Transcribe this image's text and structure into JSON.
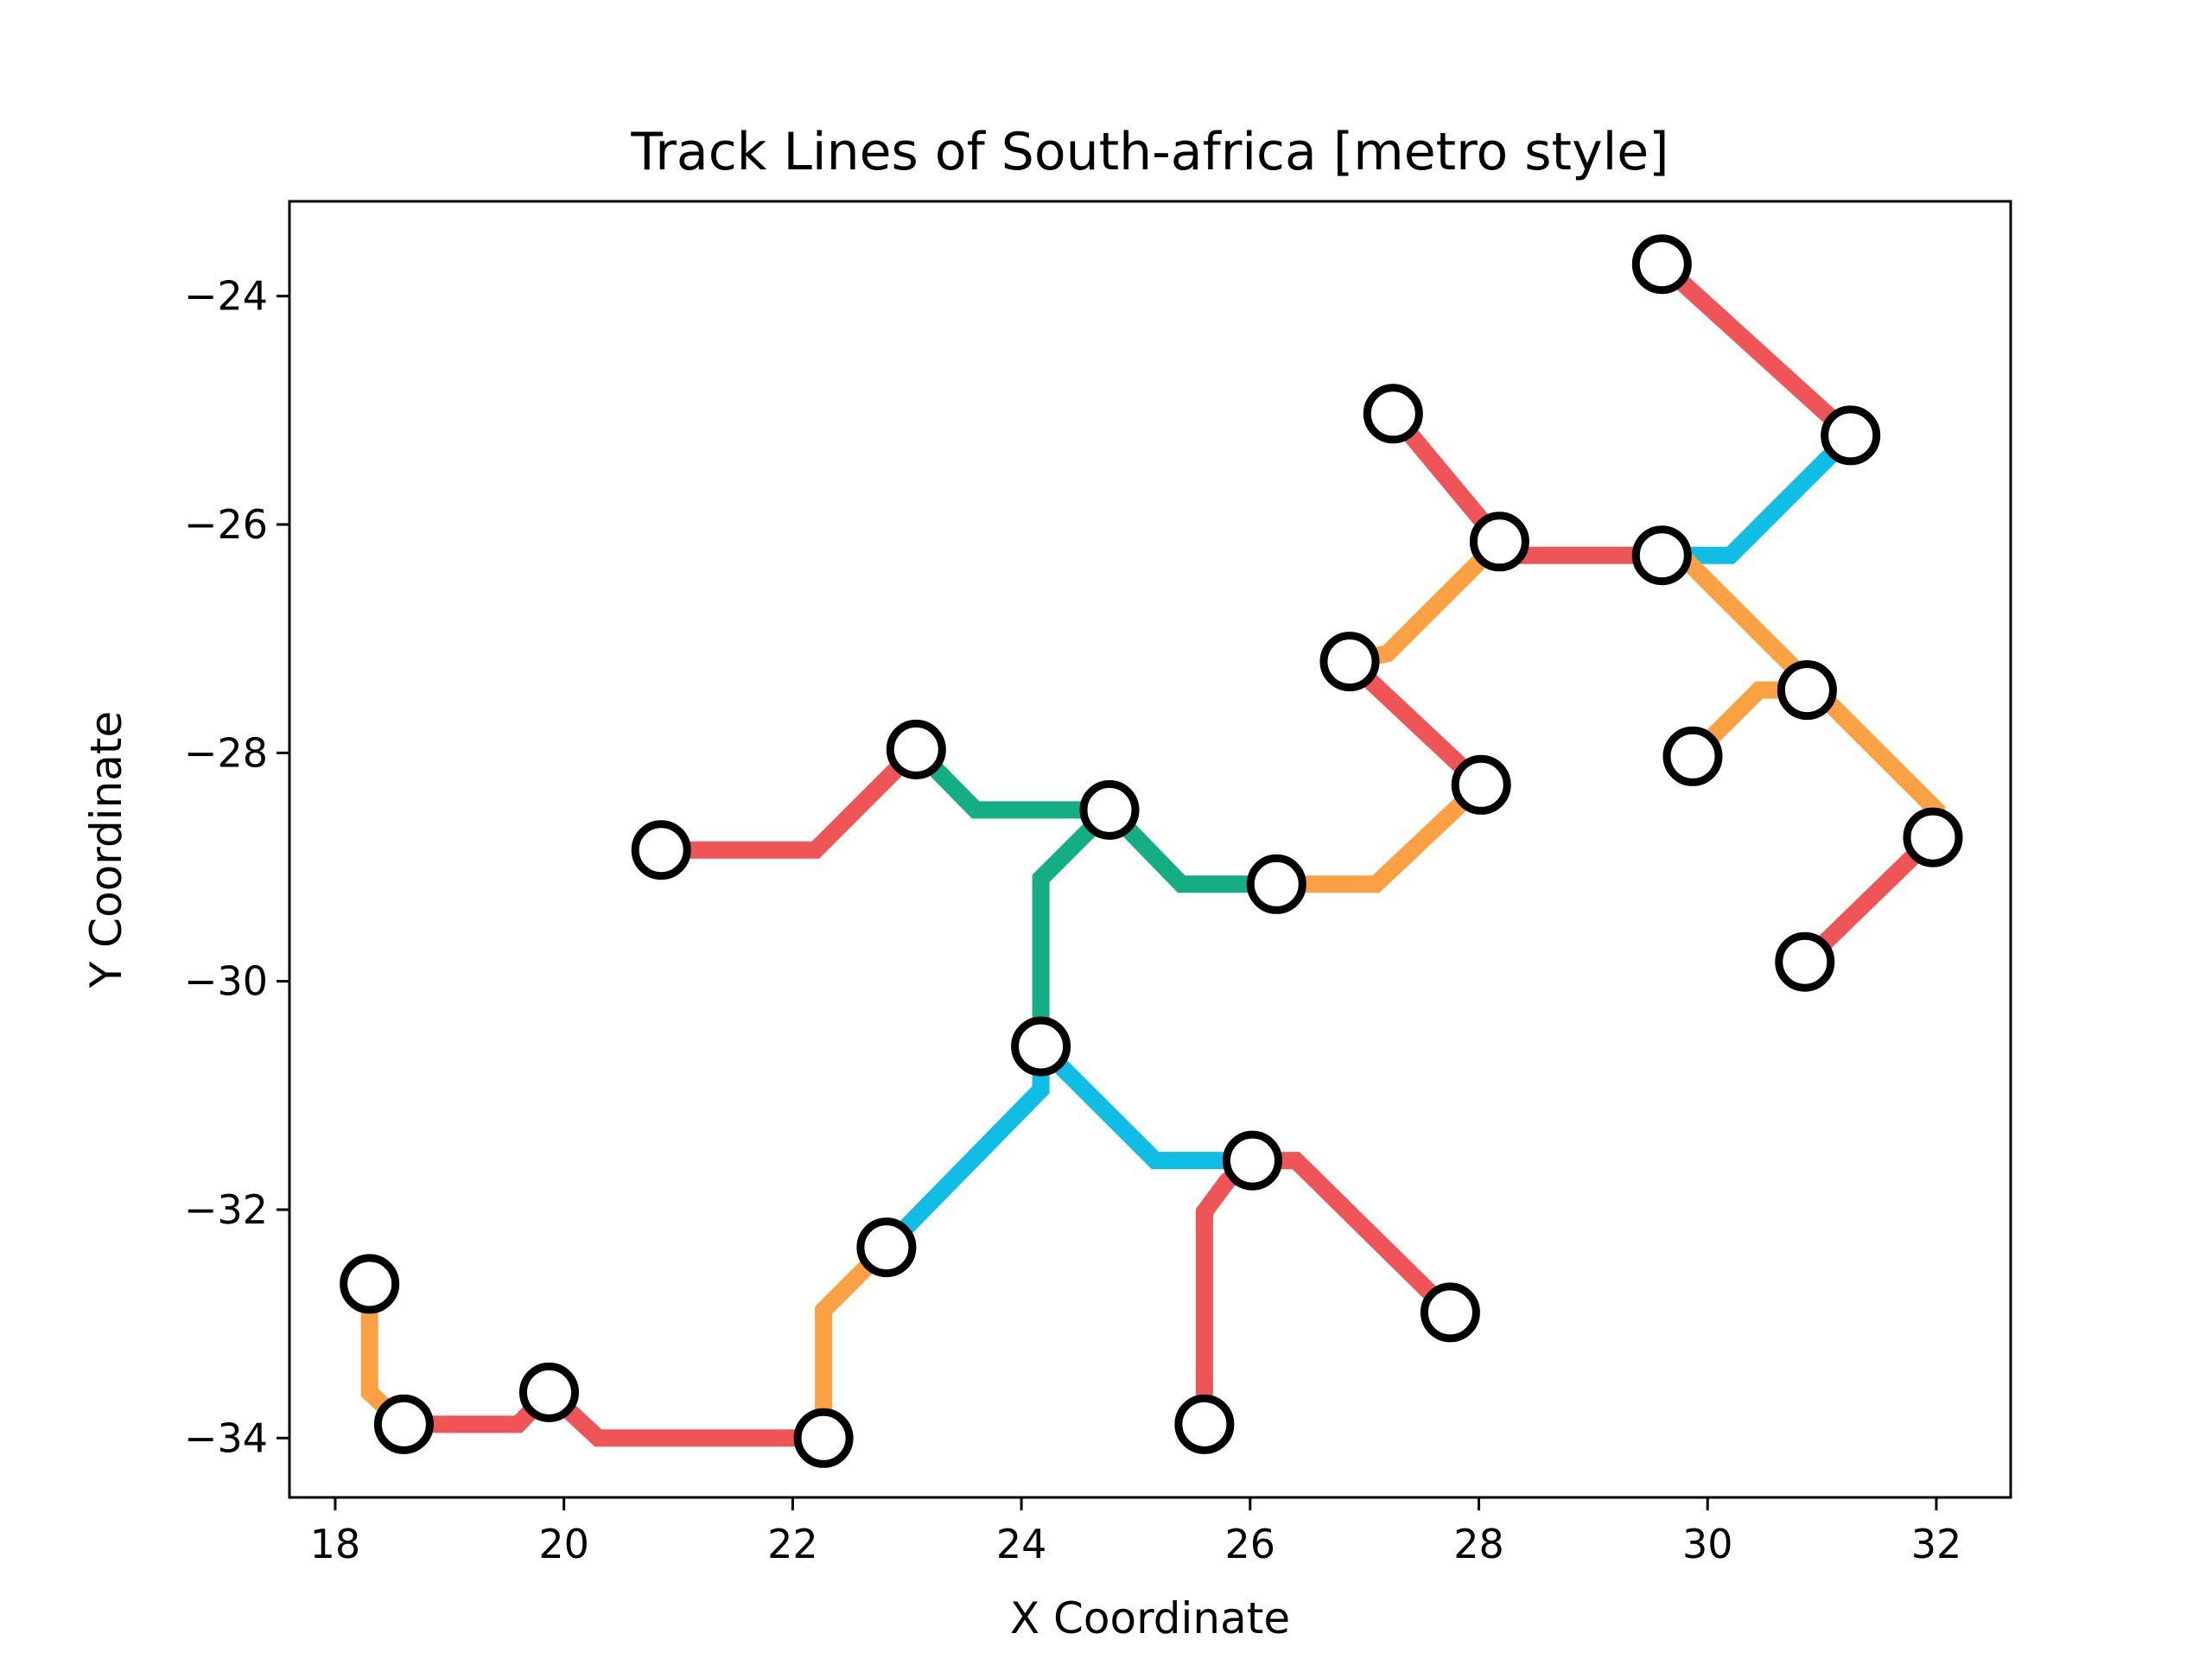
{
  "chart_data": {
    "type": "line",
    "title": "Track Lines of South-africa [metro style]",
    "xlabel": "X Coordinate",
    "ylabel": "Y Coordinate",
    "xlim": [
      17.6,
      32.65
    ],
    "ylim": [
      -34.52,
      -23.17
    ],
    "xticks": [
      {
        "value": 18,
        "label": "18"
      },
      {
        "value": 20,
        "label": "20"
      },
      {
        "value": 22,
        "label": "22"
      },
      {
        "value": 24,
        "label": "24"
      },
      {
        "value": 26,
        "label": "26"
      },
      {
        "value": 28,
        "label": "28"
      },
      {
        "value": 30,
        "label": "30"
      },
      {
        "value": 32,
        "label": "32"
      }
    ],
    "yticks": [
      {
        "value": -24,
        "label": "−24"
      },
      {
        "value": -26,
        "label": "−26"
      },
      {
        "value": -28,
        "label": "−28"
      },
      {
        "value": -30,
        "label": "−30"
      },
      {
        "value": -32,
        "label": "−32"
      },
      {
        "value": -34,
        "label": "−34"
      }
    ],
    "grid": false,
    "legend": false,
    "line_colors": {
      "red": "#ef5456",
      "orange": "#fca044",
      "cyan": "#10bde5",
      "green": "#14ad84"
    },
    "segments": [
      {
        "color": "red",
        "points": [
          [
            29.6,
            -23.72
          ],
          [
            31.25,
            -25.22
          ]
        ]
      },
      {
        "color": "cyan",
        "points": [
          [
            31.25,
            -25.22
          ],
          [
            30.2,
            -26.27
          ],
          [
            29.6,
            -26.27
          ]
        ]
      },
      {
        "color": "red",
        "points": [
          [
            27.25,
            -25.03
          ],
          [
            28.18,
            -26.15
          ]
        ]
      },
      {
        "color": "red",
        "points": [
          [
            28.18,
            -26.15
          ],
          [
            28.3,
            -26.27
          ],
          [
            29.6,
            -26.27
          ]
        ]
      },
      {
        "color": "orange",
        "points": [
          [
            28.18,
            -26.15
          ],
          [
            27.2,
            -27.13
          ],
          [
            26.87,
            -27.2
          ]
        ]
      },
      {
        "color": "orange",
        "points": [
          [
            29.6,
            -26.27
          ],
          [
            29.77,
            -26.27
          ],
          [
            32.0,
            -28.5
          ],
          [
            31.97,
            -28.74
          ]
        ]
      },
      {
        "color": "red",
        "points": [
          [
            31.97,
            -28.74
          ],
          [
            30.85,
            -29.83
          ]
        ]
      },
      {
        "color": "orange",
        "points": [
          [
            29.87,
            -28.03
          ],
          [
            30.45,
            -27.45
          ],
          [
            30.87,
            -27.45
          ]
        ]
      },
      {
        "color": "red",
        "points": [
          [
            26.87,
            -27.2
          ],
          [
            28.02,
            -28.28
          ]
        ]
      },
      {
        "color": "orange",
        "points": [
          [
            28.02,
            -28.28
          ],
          [
            27.1,
            -29.15
          ],
          [
            26.23,
            -29.15
          ]
        ]
      },
      {
        "color": "red",
        "points": [
          [
            20.85,
            -28.85
          ],
          [
            22.2,
            -28.85
          ],
          [
            23.08,
            -27.97
          ]
        ]
      },
      {
        "color": "green",
        "points": [
          [
            23.08,
            -27.97
          ],
          [
            23.6,
            -28.5
          ],
          [
            24.77,
            -28.5
          ]
        ]
      },
      {
        "color": "green",
        "points": [
          [
            24.77,
            -28.5
          ],
          [
            25.4,
            -29.15
          ],
          [
            26.23,
            -29.15
          ]
        ]
      },
      {
        "color": "green",
        "points": [
          [
            24.77,
            -28.5
          ],
          [
            24.17,
            -29.1
          ],
          [
            24.17,
            -30.57
          ]
        ]
      },
      {
        "color": "cyan",
        "points": [
          [
            24.17,
            -30.57
          ],
          [
            25.17,
            -31.57
          ],
          [
            26.02,
            -31.57
          ]
        ]
      },
      {
        "color": "cyan",
        "points": [
          [
            24.17,
            -30.57
          ],
          [
            24.17,
            -30.95
          ],
          [
            22.82,
            -32.33
          ]
        ]
      },
      {
        "color": "red",
        "points": [
          [
            26.02,
            -31.57
          ],
          [
            26.4,
            -31.57
          ],
          [
            27.75,
            -32.9
          ]
        ]
      },
      {
        "color": "red",
        "points": [
          [
            26.02,
            -31.57
          ],
          [
            25.8,
            -31.75
          ],
          [
            25.6,
            -32.02
          ],
          [
            25.6,
            -33.88
          ]
        ]
      },
      {
        "color": "orange",
        "points": [
          [
            22.82,
            -32.33
          ],
          [
            22.27,
            -32.88
          ],
          [
            22.27,
            -34.0
          ]
        ]
      },
      {
        "color": "red",
        "points": [
          [
            22.27,
            -34.0
          ],
          [
            20.3,
            -34.0
          ],
          [
            19.87,
            -33.6
          ]
        ]
      },
      {
        "color": "red",
        "points": [
          [
            19.87,
            -33.6
          ],
          [
            19.6,
            -33.88
          ],
          [
            18.6,
            -33.88
          ]
        ]
      },
      {
        "color": "orange",
        "points": [
          [
            18.3,
            -32.65
          ],
          [
            18.3,
            -33.6
          ],
          [
            18.6,
            -33.88
          ]
        ]
      }
    ],
    "stations": [
      [
        29.6,
        -23.72
      ],
      [
        31.25,
        -25.22
      ],
      [
        27.25,
        -25.03
      ],
      [
        28.18,
        -26.15
      ],
      [
        29.6,
        -26.27
      ],
      [
        26.87,
        -27.2
      ],
      [
        30.87,
        -27.45
      ],
      [
        29.87,
        -28.03
      ],
      [
        28.02,
        -28.28
      ],
      [
        31.97,
        -28.74
      ],
      [
        30.85,
        -29.83
      ],
      [
        23.08,
        -27.97
      ],
      [
        20.85,
        -28.85
      ],
      [
        24.77,
        -28.5
      ],
      [
        26.23,
        -29.15
      ],
      [
        24.17,
        -30.57
      ],
      [
        26.02,
        -31.57
      ],
      [
        22.82,
        -32.33
      ],
      [
        27.75,
        -32.9
      ],
      [
        25.6,
        -33.88
      ],
      [
        22.27,
        -34.0
      ],
      [
        19.87,
        -33.6
      ],
      [
        18.6,
        -33.88
      ],
      [
        18.3,
        -32.65
      ]
    ]
  }
}
